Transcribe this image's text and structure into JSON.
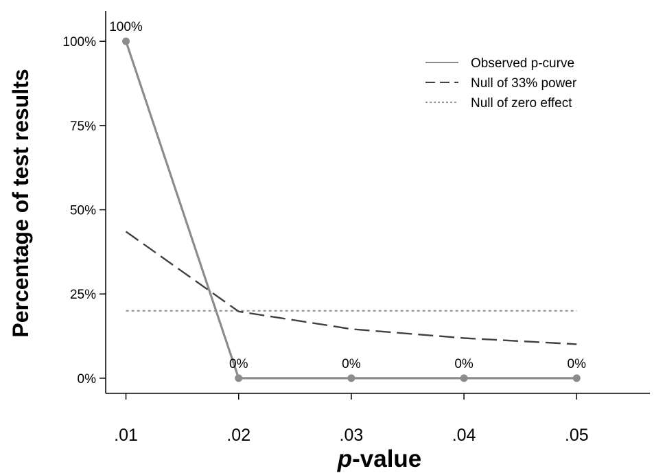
{
  "chart_data": {
    "type": "line",
    "title": "",
    "xlabel_italic": "p",
    "xlabel_rest": "-value",
    "ylabel": "Percentage of test results",
    "x": [
      0.01,
      0.02,
      0.03,
      0.04,
      0.05
    ],
    "x_tick_labels": [
      ".01",
      ".02",
      ".03",
      ".04",
      ".05"
    ],
    "xlim": [
      0.0082,
      0.0565
    ],
    "ylim": [
      -4.5,
      109
    ],
    "y_ticks": [
      0,
      25,
      50,
      75,
      100
    ],
    "y_tick_labels": [
      "0%",
      "25%",
      "50%",
      "75%",
      "100%"
    ],
    "grid": false,
    "legend_position": "top-right",
    "series": [
      {
        "name": "Observed p-curve",
        "values": [
          100,
          0,
          0,
          0,
          0
        ],
        "style": "solid",
        "color": "#8c8c8c",
        "markers": true,
        "point_labels": [
          "100%",
          "0%",
          "0%",
          "0%",
          "0%"
        ]
      },
      {
        "name": "Null of 33% power",
        "values": [
          43.5,
          19.8,
          14.6,
          11.9,
          10.1
        ],
        "style": "dashed",
        "color": "#404040",
        "markers": false
      },
      {
        "name": "Null of zero effect",
        "values": [
          20,
          20,
          20,
          20,
          20
        ],
        "style": "dotted",
        "color": "#8c8c8c",
        "markers": false
      }
    ]
  }
}
